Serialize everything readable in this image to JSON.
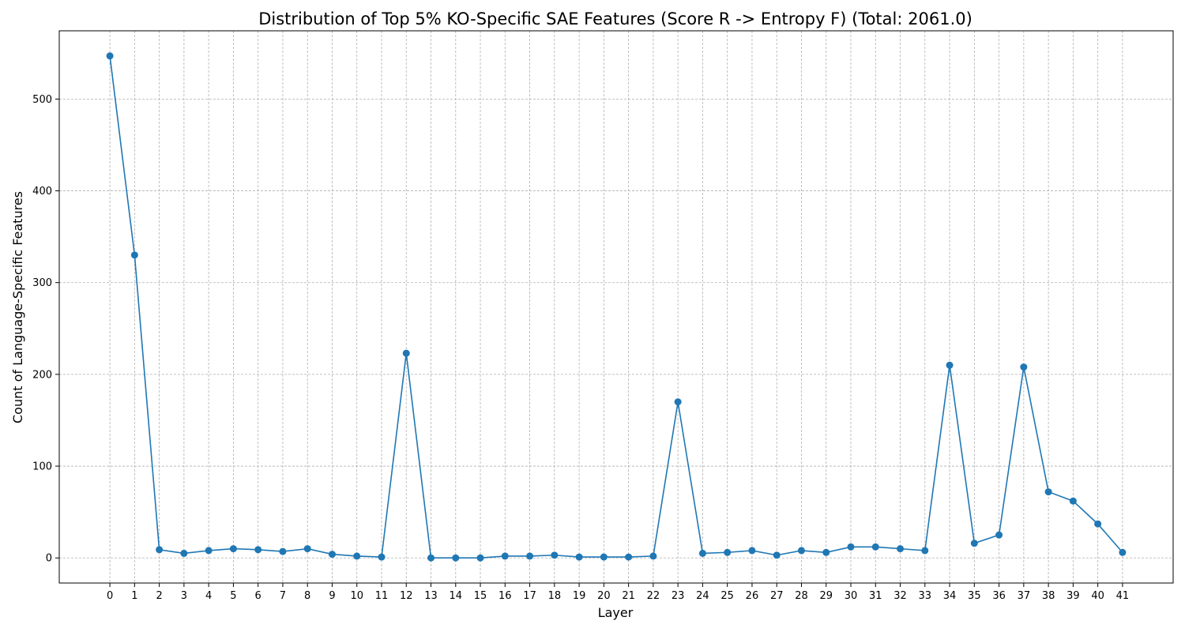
{
  "chart_data": {
    "type": "line",
    "title": "Distribution of Top 5% KO-Specific SAE Features (Score R -> Entropy F) (Total: 2061.0)",
    "xlabel": "Layer",
    "ylabel": "Count of Language-Specific Features",
    "x": [
      0,
      1,
      2,
      3,
      4,
      5,
      6,
      7,
      8,
      9,
      10,
      11,
      12,
      13,
      14,
      15,
      16,
      17,
      18,
      19,
      20,
      21,
      22,
      23,
      24,
      25,
      26,
      27,
      28,
      29,
      30,
      31,
      32,
      33,
      34,
      35,
      36,
      37,
      38,
      39,
      40,
      41
    ],
    "y": [
      547,
      330,
      9,
      5,
      8,
      10,
      9,
      7,
      10,
      4,
      2,
      1,
      223,
      0,
      0,
      0,
      2,
      2,
      3,
      1,
      1,
      1,
      2,
      170,
      5,
      6,
      8,
      3,
      8,
      6,
      12,
      12,
      10,
      8,
      210,
      16,
      25,
      208,
      72,
      62,
      37,
      6
    ],
    "xlim": [
      -2.05,
      43.05
    ],
    "ylim": [
      -27.35,
      574.35
    ],
    "yticks": [
      0,
      100,
      200,
      300,
      400,
      500
    ],
    "grid": true,
    "line_color": "#1f77b4",
    "marker": "circle"
  }
}
